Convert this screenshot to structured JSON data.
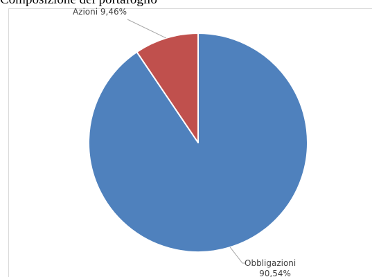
{
  "chart_data": {
    "type": "pie",
    "title": "Composizione del portafoglio",
    "slices": [
      {
        "label": "Obbligazioni",
        "value": 90.54,
        "value_label": "90,54%",
        "color": "#4f81bd"
      },
      {
        "label": "Azioni",
        "value": 9.46,
        "value_label": "9,46%",
        "color": "#c0504d"
      }
    ],
    "legend": "none",
    "data_labels": "outside-with-leader-lines"
  }
}
